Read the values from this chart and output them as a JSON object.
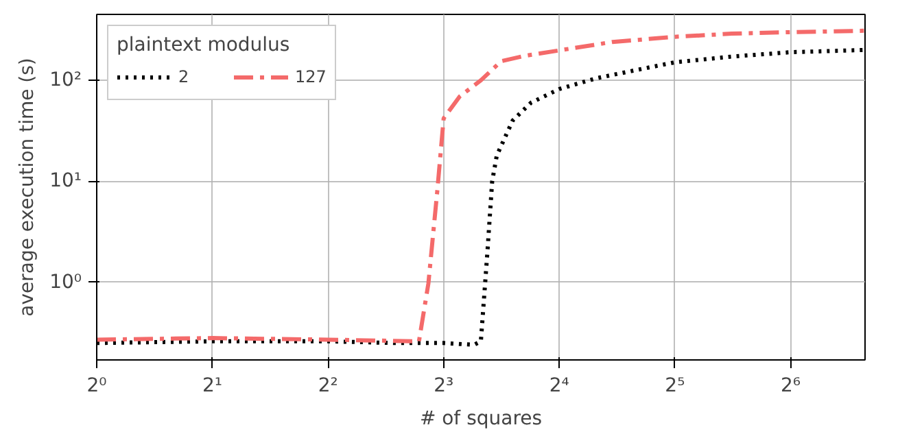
{
  "chart_data": {
    "type": "line",
    "xlabel": "# of squares",
    "ylabel": "average execution time (s)",
    "legend_title": "plaintext modulus",
    "log": "xy",
    "grid": true,
    "legend": "top left",
    "xlim": [
      1,
      100
    ],
    "ylim": [
      0.17,
      450
    ],
    "xticks": [
      {
        "value": 1,
        "label": "2⁰"
      },
      {
        "value": 2,
        "label": "2¹"
      },
      {
        "value": 4,
        "label": "2²"
      },
      {
        "value": 8,
        "label": "2³"
      },
      {
        "value": 16,
        "label": "2⁴"
      },
      {
        "value": 32,
        "label": "2⁵"
      },
      {
        "value": 64,
        "label": "2⁶"
      }
    ],
    "yticks": [
      {
        "value": 1,
        "label": "10⁰"
      },
      {
        "value": 10,
        "label": "10¹"
      },
      {
        "value": 100,
        "label": "10²"
      }
    ],
    "series": [
      {
        "name": "2",
        "color": "#000000",
        "line_style": "dotted",
        "x": [
          1,
          2,
          4,
          6,
          8,
          9.6,
          10.0,
          10.4,
          10.7,
          11.0,
          12.1,
          13.5,
          16,
          20,
          25,
          32,
          45,
          64,
          100
        ],
        "values": [
          0.25,
          0.26,
          0.26,
          0.25,
          0.25,
          0.24,
          0.26,
          2,
          10,
          18,
          40,
          60,
          82,
          105,
          125,
          151,
          172,
          190,
          200
        ]
      },
      {
        "name": "127",
        "color": "#f46a6a",
        "line_style": "dashdot",
        "x": [
          1,
          2,
          4,
          6.9,
          7.3,
          7.7,
          8,
          8.8,
          10,
          11.3,
          13,
          16,
          22,
          32,
          45,
          64,
          100
        ],
        "values": [
          0.27,
          0.28,
          0.27,
          0.26,
          0.97,
          8,
          42,
          69,
          100,
          155,
          175,
          198,
          240,
          270,
          290,
          300,
          310
        ]
      }
    ]
  }
}
